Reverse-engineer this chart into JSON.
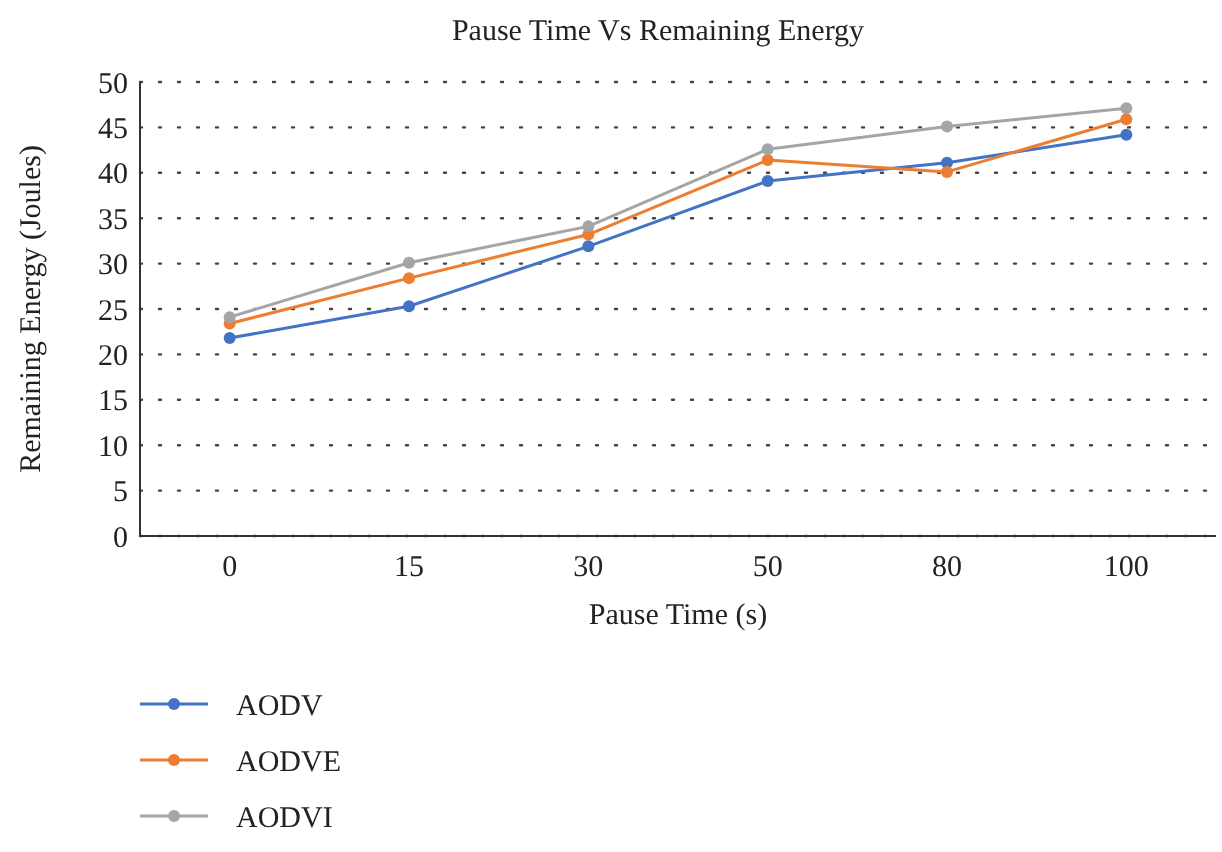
{
  "chart_data": {
    "type": "line",
    "title": "Pause Time Vs Remaining Energy",
    "xlabel": "Pause Time (s)",
    "ylabel": "Remaining Energy (Joules)",
    "categories": [
      "0",
      "15",
      "30",
      "50",
      "80",
      "100"
    ],
    "series": [
      {
        "name": "AODV",
        "color": "#4472c4",
        "values": [
          21.8,
          25.3,
          31.9,
          39.1,
          41.1,
          44.2
        ]
      },
      {
        "name": "AODVE",
        "color": "#ed7d31",
        "values": [
          23.4,
          28.4,
          33.2,
          41.4,
          40.1,
          45.9
        ]
      },
      {
        "name": "AODVI",
        "color": "#a5a5a5",
        "values": [
          24.1,
          30.1,
          34.1,
          42.6,
          45.1,
          47.1
        ]
      }
    ],
    "ylim": [
      0,
      50
    ],
    "yticks": [
      0,
      5,
      10,
      15,
      20,
      25,
      30,
      35,
      40,
      45,
      50
    ],
    "grid": "y",
    "legend": "bottom left",
    "marker": "circle",
    "line_style": "solid"
  }
}
